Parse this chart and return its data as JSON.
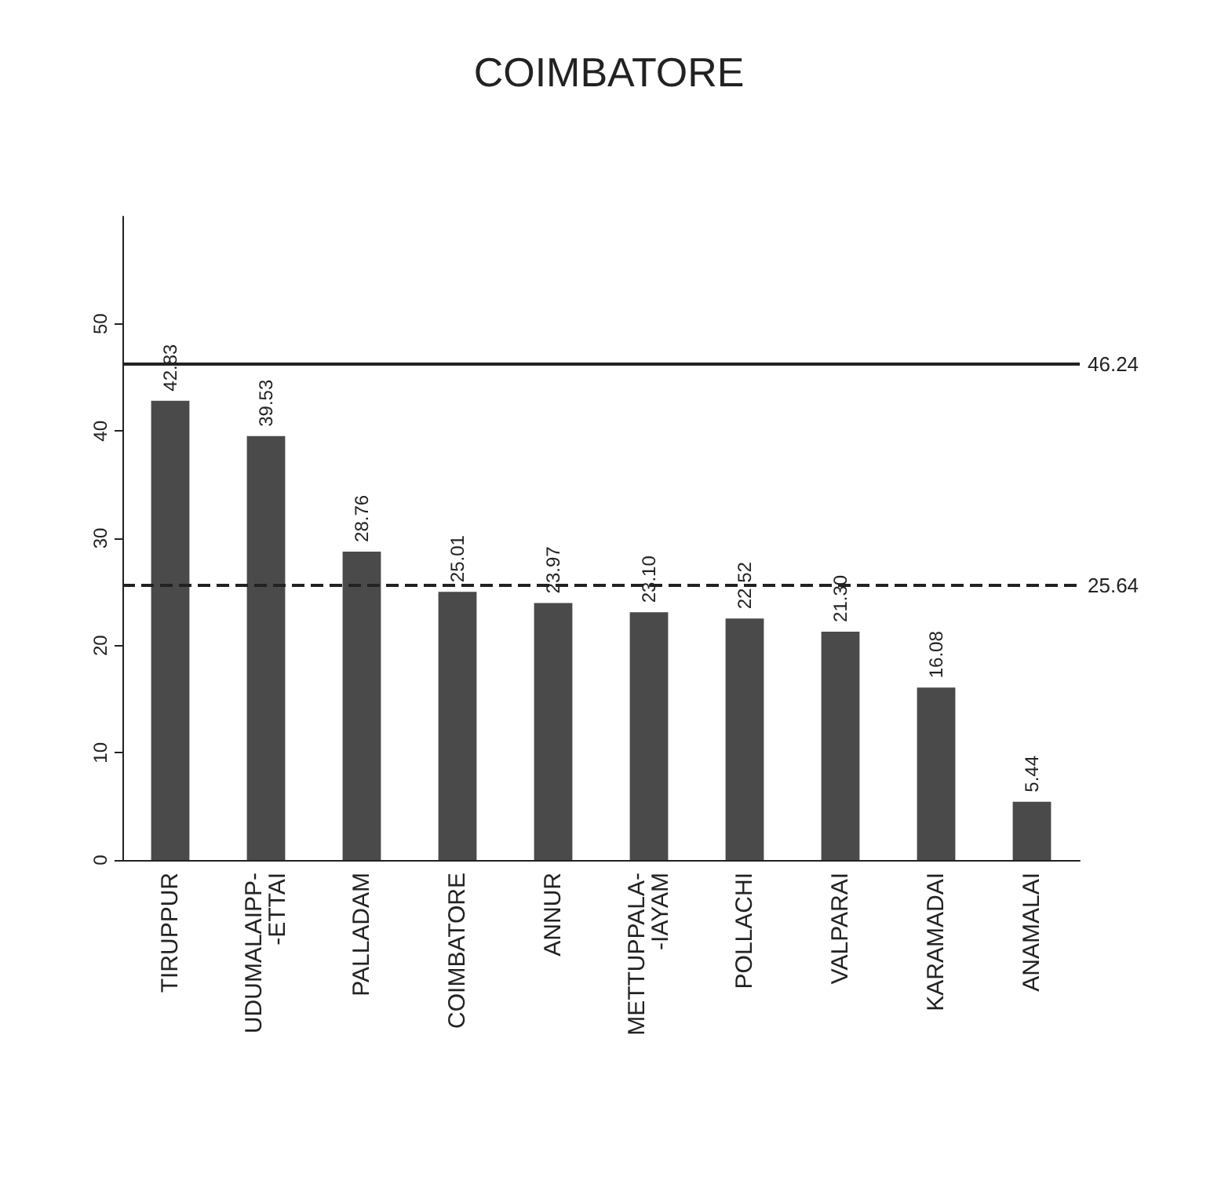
{
  "chart_data": {
    "type": "bar",
    "title": "COIMBATORE",
    "categories": [
      "TIRUPPUR",
      "UDUMALAIPP-\n-ETTAI",
      "PALLADAM",
      "COIMBATORE",
      "ANNUR",
      "METTUPPALA-\n-IAYAM",
      "POLLACHI",
      "VALPARAI",
      "KARAMADAI",
      "ANAMALAI"
    ],
    "values": [
      42.83,
      39.53,
      28.76,
      25.01,
      23.97,
      23.1,
      22.52,
      21.3,
      16.08,
      5.44
    ],
    "color": "#4a4a4a",
    "value_labels": [
      "42.83",
      "39.53",
      "28.76",
      "25.01",
      "23.97",
      "23.10",
      "22.52",
      "21.30",
      "16.08",
      "5.44"
    ],
    "ylim": [
      0,
      60
    ],
    "yticks": [
      0,
      10,
      20,
      30,
      40,
      50
    ],
    "ref_lines": [
      {
        "axis": "y",
        "value": 46.24,
        "label": "46.24",
        "line_style": "solid",
        "color": "#222222"
      },
      {
        "axis": "y",
        "value": 25.64,
        "label": "25.64",
        "line_style": "dashed",
        "color": "#222222"
      }
    ]
  }
}
